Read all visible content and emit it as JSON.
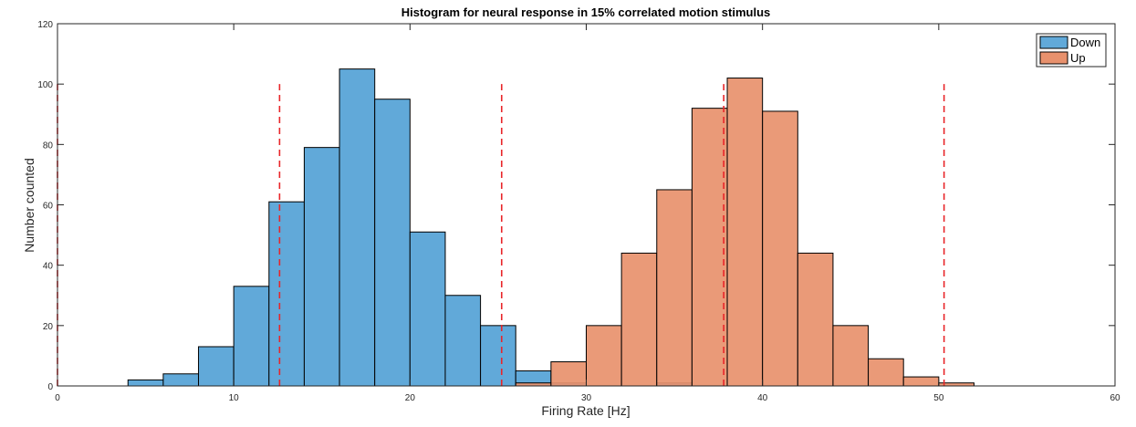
{
  "chart_data": {
    "type": "bar",
    "title": "Histogram for neural response in 15% correlated motion stimulus",
    "xlabel": "Firing Rate [Hz]",
    "ylabel": "Number counted",
    "xlim": [
      0,
      60
    ],
    "ylim": [
      0,
      120
    ],
    "xticks": [
      0,
      10,
      20,
      30,
      40,
      50,
      60
    ],
    "yticks": [
      0,
      20,
      40,
      60,
      80,
      100,
      120
    ],
    "grid": false,
    "legend_position": "top-right",
    "series": [
      {
        "name": "Down",
        "color": "#61a9d9",
        "bins": [
          {
            "x0": 4,
            "x1": 6,
            "count": 2
          },
          {
            "x0": 6,
            "x1": 8,
            "count": 4
          },
          {
            "x0": 8,
            "x1": 10,
            "count": 13
          },
          {
            "x0": 10,
            "x1": 12,
            "count": 33
          },
          {
            "x0": 12,
            "x1": 14,
            "count": 61
          },
          {
            "x0": 14,
            "x1": 16,
            "count": 79
          },
          {
            "x0": 16,
            "x1": 18,
            "count": 105
          },
          {
            "x0": 18,
            "x1": 20,
            "count": 95
          },
          {
            "x0": 20,
            "x1": 22,
            "count": 51
          },
          {
            "x0": 22,
            "x1": 24,
            "count": 30
          },
          {
            "x0": 24,
            "x1": 26,
            "count": 20
          },
          {
            "x0": 26,
            "x1": 28,
            "count": 5
          },
          {
            "x0": 28,
            "x1": 30,
            "count": 1
          },
          {
            "x0": 34,
            "x1": 36,
            "count": 1
          }
        ]
      },
      {
        "name": "Up",
        "color": "#e8916d",
        "bins": [
          {
            "x0": 26,
            "x1": 28,
            "count": 1
          },
          {
            "x0": 28,
            "x1": 30,
            "count": 8
          },
          {
            "x0": 30,
            "x1": 32,
            "count": 20
          },
          {
            "x0": 32,
            "x1": 34,
            "count": 44
          },
          {
            "x0": 34,
            "x1": 36,
            "count": 65
          },
          {
            "x0": 36,
            "x1": 38,
            "count": 92
          },
          {
            "x0": 38,
            "x1": 40,
            "count": 102
          },
          {
            "x0": 40,
            "x1": 42,
            "count": 91
          },
          {
            "x0": 42,
            "x1": 44,
            "count": 44
          },
          {
            "x0": 44,
            "x1": 46,
            "count": 20
          },
          {
            "x0": 46,
            "x1": 48,
            "count": 9
          },
          {
            "x0": 48,
            "x1": 50,
            "count": 3
          },
          {
            "x0": 50,
            "x1": 52,
            "count": 1
          }
        ]
      }
    ],
    "reference_lines": {
      "color": "#e8262a",
      "style": "dashed",
      "x": [
        0,
        12.6,
        25.2,
        37.8,
        50.3
      ],
      "y_range": [
        0,
        100
      ]
    }
  }
}
